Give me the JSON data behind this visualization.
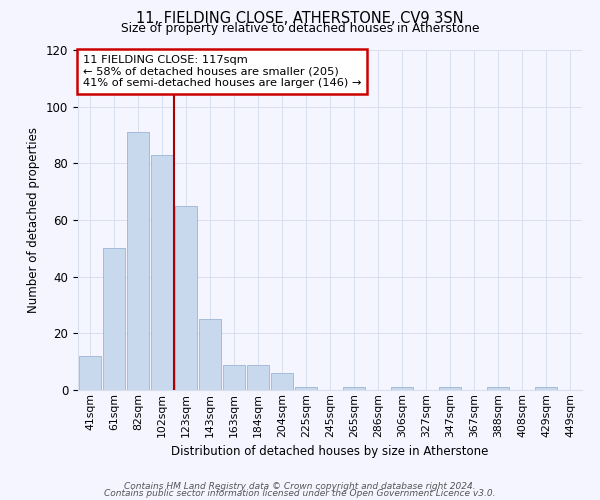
{
  "title": "11, FIELDING CLOSE, ATHERSTONE, CV9 3SN",
  "subtitle": "Size of property relative to detached houses in Atherstone",
  "xlabel": "Distribution of detached houses by size in Atherstone",
  "ylabel": "Number of detached properties",
  "bar_labels": [
    "41sqm",
    "61sqm",
    "82sqm",
    "102sqm",
    "123sqm",
    "143sqm",
    "163sqm",
    "184sqm",
    "204sqm",
    "225sqm",
    "245sqm",
    "265sqm",
    "286sqm",
    "306sqm",
    "327sqm",
    "347sqm",
    "367sqm",
    "388sqm",
    "408sqm",
    "429sqm",
    "449sqm"
  ],
  "bar_values": [
    12,
    50,
    91,
    83,
    65,
    25,
    9,
    9,
    6,
    1,
    0,
    1,
    0,
    1,
    0,
    1,
    0,
    1,
    0,
    1,
    0
  ],
  "bar_color": "#c8d9ee",
  "bar_edge_color": "#9ab5d5",
  "highlight_line_color": "#aa0000",
  "annotation_line1": "11 FIELDING CLOSE: 117sqm",
  "annotation_line2": "← 58% of detached houses are smaller (205)",
  "annotation_line3": "41% of semi-detached houses are larger (146) →",
  "annotation_box_color": "#cc0000",
  "ylim": [
    0,
    120
  ],
  "yticks": [
    0,
    20,
    40,
    60,
    80,
    100,
    120
  ],
  "footer_line1": "Contains HM Land Registry data © Crown copyright and database right 2024.",
  "footer_line2": "Contains public sector information licensed under the Open Government Licence v3.0.",
  "bg_color": "#f5f5ff",
  "grid_color": "#d8e0f0"
}
